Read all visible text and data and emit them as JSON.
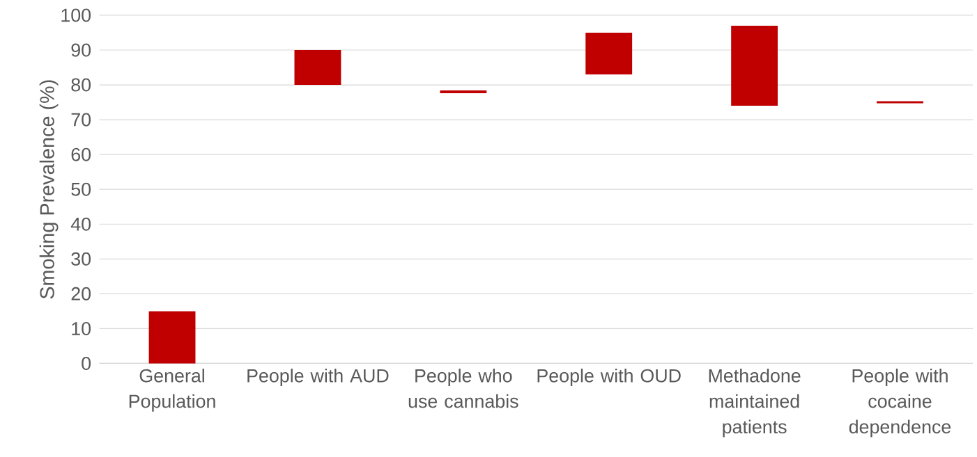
{
  "chart_data": {
    "type": "bar",
    "ylabel": "Smoking Prevalence (%)",
    "categories": [
      "General Population",
      "People with AUD",
      "People who use cannabis",
      "People with OUD",
      "Methadone maintained patients",
      "People with cocaine dependence"
    ],
    "base": [
      0,
      80,
      77.6,
      83,
      74,
      74.7
    ],
    "values": [
      15,
      10,
      0.8,
      12,
      23,
      0.6
    ],
    "color": "#c00000",
    "ylim": [
      0,
      100
    ],
    "yticks": [
      0,
      10,
      20,
      30,
      40,
      50,
      60,
      70,
      80,
      90,
      100
    ],
    "grid": "y"
  }
}
